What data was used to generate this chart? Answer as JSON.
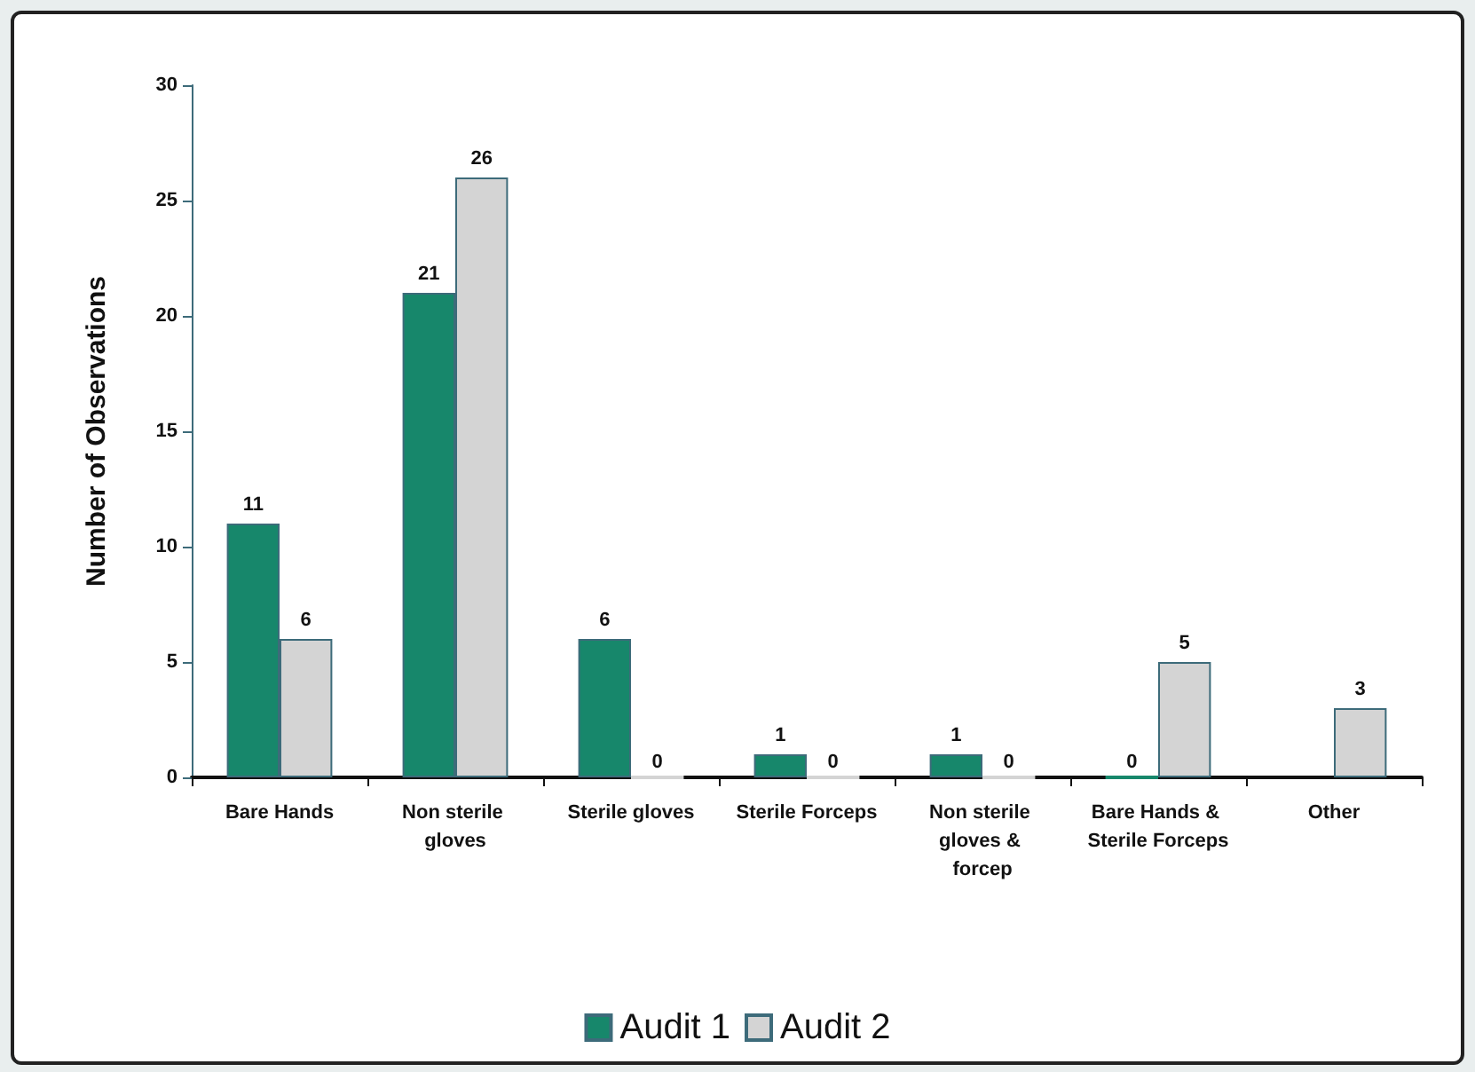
{
  "chart_data": {
    "type": "bar",
    "ylabel": "Number of Observations",
    "categories": [
      "Bare Hands",
      "Non sterile gloves",
      "Sterile gloves",
      "Sterile Forceps",
      "Non sterile gloves & forcep",
      "Bare Hands & Sterile Forceps",
      "Other"
    ],
    "series": [
      {
        "name": "Audit 1",
        "color": "#17876b",
        "values": [
          11,
          21,
          6,
          1,
          1,
          0,
          null
        ]
      },
      {
        "name": "Audit 2",
        "color": "#d4d4d4",
        "values": [
          6,
          26,
          0,
          0,
          0,
          5,
          3
        ]
      }
    ],
    "ylim": [
      0,
      30
    ],
    "yticks": [
      0,
      5,
      10,
      15,
      20,
      25,
      30
    ],
    "grid": false,
    "legend": "bottom",
    "data_labels": true
  }
}
